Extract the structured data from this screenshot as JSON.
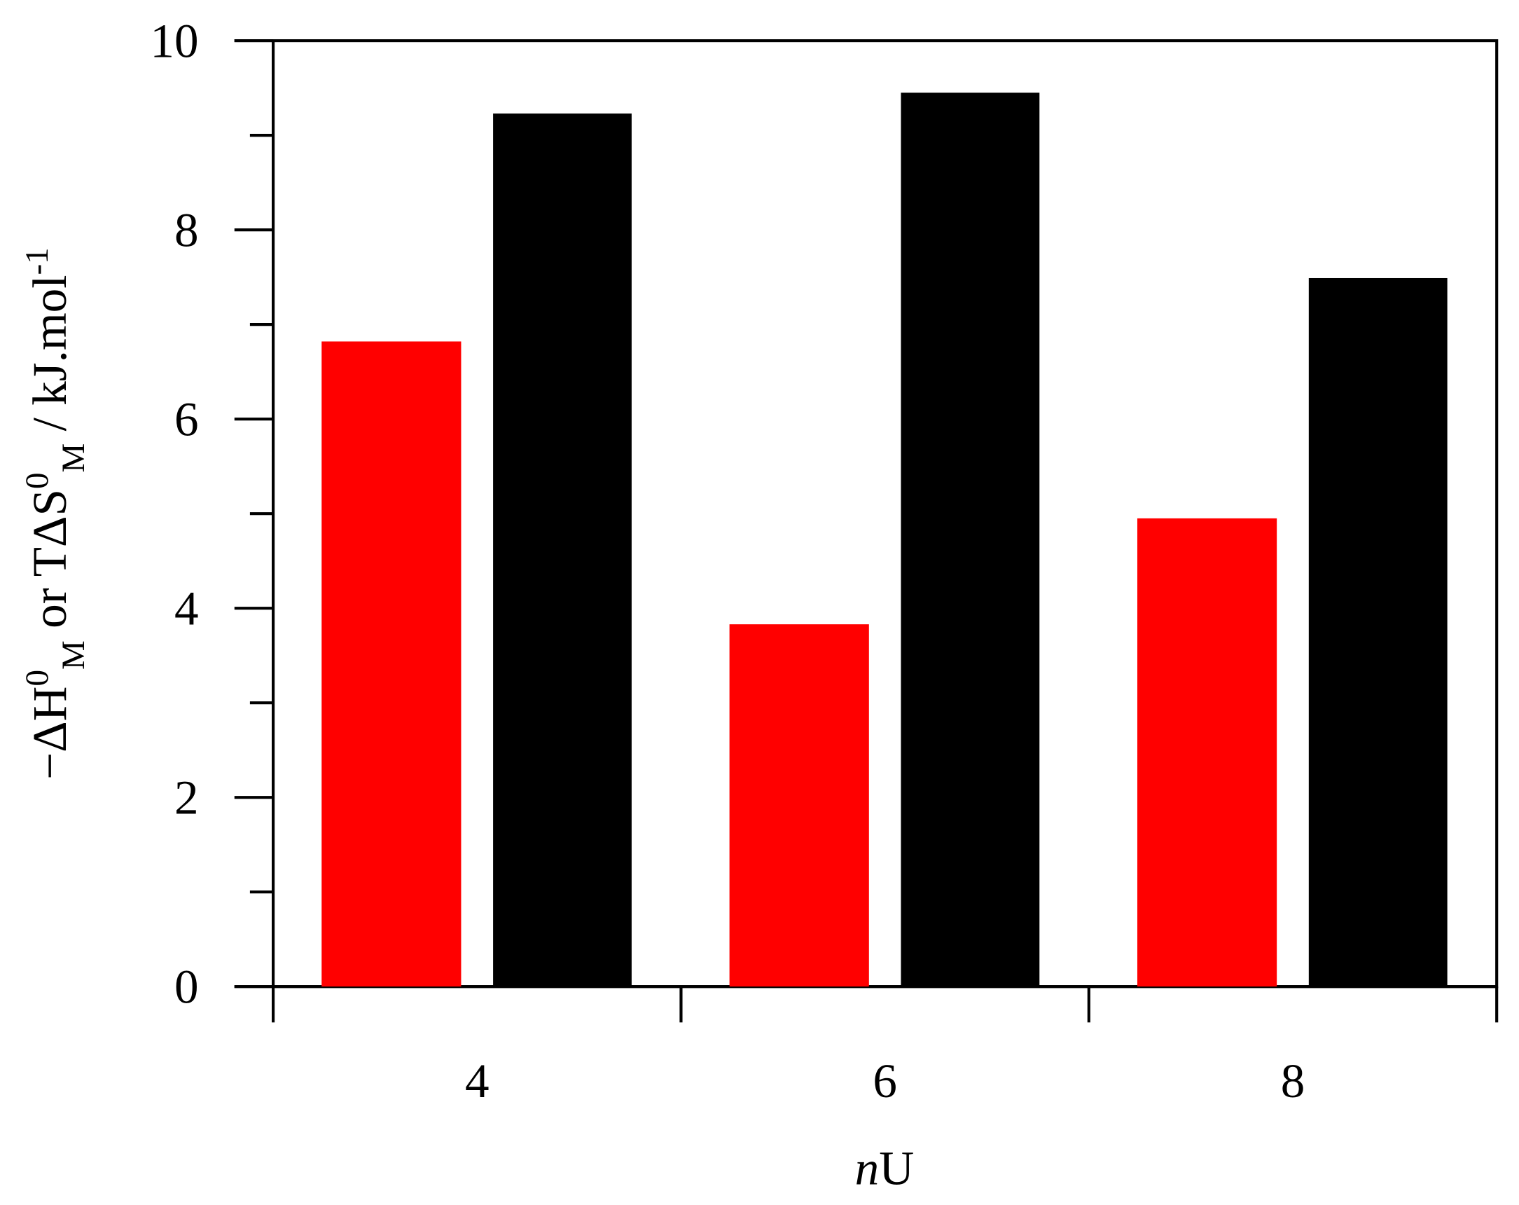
{
  "chart_data": {
    "type": "bar",
    "categories": [
      "4",
      "6",
      "8"
    ],
    "series": [
      {
        "color": "#ff0000",
        "values": [
          6.82,
          3.83,
          4.95
        ]
      },
      {
        "color": "#000000",
        "values": [
          9.23,
          9.45,
          7.49
        ]
      }
    ],
    "ylim": [
      0,
      10
    ],
    "yticks": [
      0,
      2,
      4,
      6,
      8,
      10
    ],
    "yminorticks": [
      1,
      3,
      5,
      7,
      9
    ],
    "xlabel": [
      "n",
      "U"
    ],
    "ylabel": [
      "−ΔH",
      "0",
      "M",
      " or TΔS",
      "0",
      "M",
      " / kJ.mol",
      "-1"
    ]
  }
}
